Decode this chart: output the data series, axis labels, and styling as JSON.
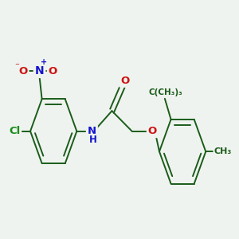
{
  "bg_color": "#eff3ef",
  "bond_color": "#1a5c1a",
  "bond_width": 1.4,
  "dbl_sep": 0.08,
  "atom_colors": {
    "C": "#1a5c1a",
    "N": "#1414cc",
    "O": "#cc1414",
    "Cl": "#1a8c1a",
    "H": "#1414cc"
  },
  "font_size": 9.5
}
